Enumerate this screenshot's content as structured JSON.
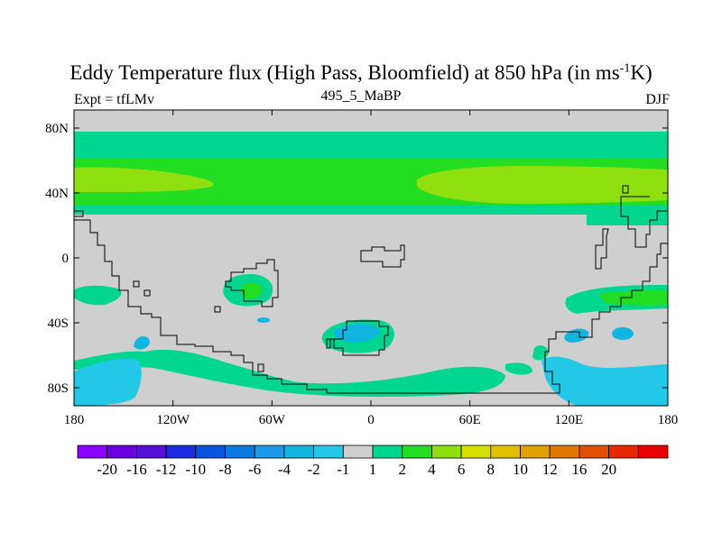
{
  "title": {
    "main": "Eddy Temperature flux (High Pass, Bloomfield) at 850 hPa (in ms",
    "sup": "-1",
    "end": "K)"
  },
  "subtitle": {
    "left": "Expt = tfLMv",
    "center": "495_5_MaBP",
    "right": "DJF"
  },
  "axes": {
    "y_ticks": [
      {
        "label": "80N",
        "lat": 80
      },
      {
        "label": "40N",
        "lat": 40
      },
      {
        "label": "0",
        "lat": 0
      },
      {
        "label": "40S",
        "lat": -40
      },
      {
        "label": "80S",
        "lat": -80
      }
    ],
    "x_ticks": [
      {
        "label": "180",
        "lon": -180
      },
      {
        "label": "120W",
        "lon": -120
      },
      {
        "label": "60W",
        "lon": -60
      },
      {
        "label": "0",
        "lon": 0
      },
      {
        "label": "60E",
        "lon": 60
      },
      {
        "label": "120E",
        "lon": 120
      },
      {
        "label": "180",
        "lon": 180
      }
    ]
  },
  "colorbar": {
    "colors": [
      "#8b00ff",
      "#6a00e0",
      "#5510d8",
      "#1f2be0",
      "#0a55e0",
      "#0a7ae0",
      "#1a9ae8",
      "#10b6e0",
      "#22c8e6",
      "#cfcfcf",
      "#00d68f",
      "#22dd22",
      "#90e010",
      "#d6e000",
      "#e0c000",
      "#e0a000",
      "#e07800",
      "#e05000",
      "#e82800",
      "#e80000"
    ],
    "labels": [
      "-20",
      "-16",
      "-12",
      "-10",
      "-8",
      "-6",
      "-4",
      "-2",
      "-1",
      "1",
      "2",
      "4",
      "6",
      "8",
      "10",
      "12",
      "16",
      "20"
    ]
  }
}
